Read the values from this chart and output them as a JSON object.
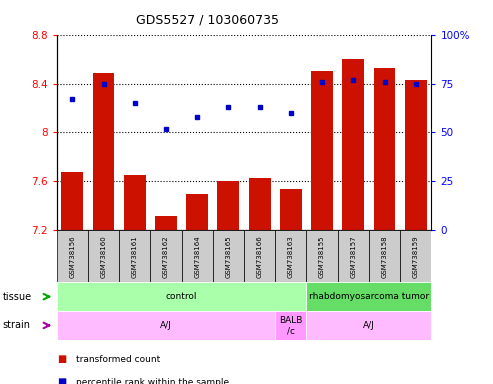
{
  "title": "GDS5527 / 103060735",
  "samples": [
    "GSM738156",
    "GSM738160",
    "GSM738161",
    "GSM738162",
    "GSM738164",
    "GSM738165",
    "GSM738166",
    "GSM738163",
    "GSM738155",
    "GSM738157",
    "GSM738158",
    "GSM738159"
  ],
  "bar_values": [
    7.68,
    8.49,
    7.65,
    7.32,
    7.5,
    7.6,
    7.63,
    7.54,
    8.5,
    8.6,
    8.53,
    8.43
  ],
  "dot_values": [
    67,
    75,
    65,
    52,
    58,
    63,
    63,
    60,
    76,
    77,
    76,
    75
  ],
  "bar_color": "#CC1100",
  "dot_color": "#0000CC",
  "ymin": 7.2,
  "ymax": 8.8,
  "y2min": 0,
  "y2max": 100,
  "yticks": [
    7.2,
    7.6,
    8.0,
    8.4,
    8.8
  ],
  "y2ticks": [
    0,
    25,
    50,
    75,
    100
  ],
  "tissue_labels": [
    {
      "text": "control",
      "start": 0,
      "end": 7,
      "color": "#aaffaa"
    },
    {
      "text": "rhabdomyosarcoma tumor",
      "start": 8,
      "end": 11,
      "color": "#66dd66"
    }
  ],
  "strain_labels": [
    {
      "text": "A/J",
      "start": 0,
      "end": 6,
      "color": "#ffbbff"
    },
    {
      "text": "BALB\n/c",
      "start": 7,
      "end": 7,
      "color": "#ff99ff"
    },
    {
      "text": "A/J",
      "start": 8,
      "end": 11,
      "color": "#ffbbff"
    }
  ],
  "legend_items": [
    {
      "color": "#CC1100",
      "label": "transformed count"
    },
    {
      "color": "#0000CC",
      "label": "percentile rank within the sample"
    }
  ],
  "tissue_arrow_color": "#00aa00",
  "strain_arrow_color": "#aa00aa",
  "sample_box_color": "#cccccc",
  "fig_width": 4.93,
  "fig_height": 3.84,
  "dpi": 100
}
